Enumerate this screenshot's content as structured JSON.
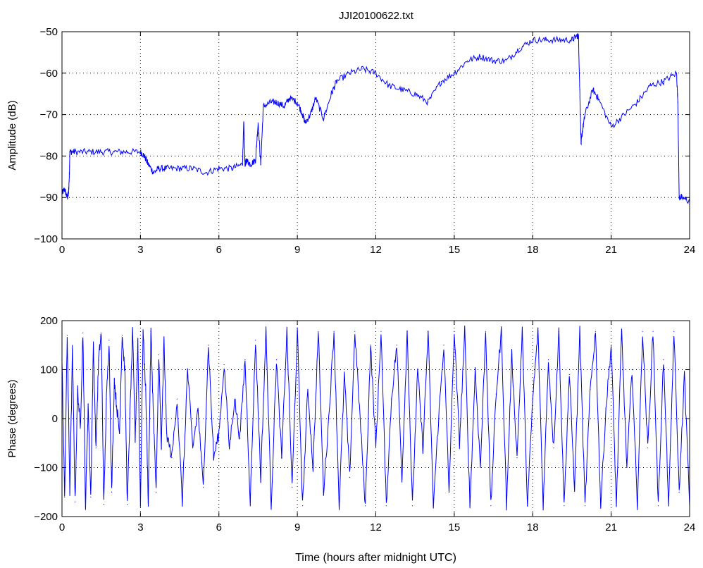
{
  "figure": {
    "title": "JJI20100622.txt"
  },
  "chart_data": [
    {
      "type": "line",
      "title": "JJI20100622.txt",
      "xlabel": "",
      "ylabel": "Amplitude (dB)",
      "xlim": [
        0,
        24
      ],
      "ylim": [
        -100,
        -50
      ],
      "xticks": [
        0,
        3,
        6,
        9,
        12,
        15,
        18,
        21,
        24
      ],
      "yticks": [
        -100,
        -90,
        -80,
        -70,
        -60,
        -50
      ],
      "grid": true,
      "color": "#0000ff",
      "series": [
        {
          "x": [
            0,
            0.1,
            0.2,
            0.25,
            0.28,
            0.3,
            0.5,
            1.0,
            1.5,
            2.0,
            2.5,
            3.0,
            3.15,
            3.3,
            3.5,
            3.7,
            4.0,
            4.5,
            5.0,
            5.5,
            6.0,
            6.5,
            6.9,
            6.95,
            7.0,
            7.05,
            7.2,
            7.4,
            7.5,
            7.6,
            7.7,
            8.0,
            8.2,
            8.5,
            8.7,
            9.0,
            9.2,
            9.3,
            9.5,
            9.7,
            10.0,
            10.3,
            10.5,
            11.0,
            11.5,
            12.0,
            12.5,
            13.0,
            13.5,
            14.0,
            14.5,
            15.0,
            15.5,
            16.0,
            16.5,
            17.0,
            17.5,
            18.0,
            18.5,
            19.0,
            19.5,
            19.7,
            19.75,
            19.8,
            19.85,
            19.9,
            20.0,
            20.3,
            20.5,
            21.0,
            21.5,
            22.0,
            22.5,
            23.0,
            23.5,
            23.55,
            23.6,
            23.7,
            24.0
          ],
          "y": [
            -89,
            -88,
            -90,
            -89,
            -85,
            -79,
            -79,
            -79,
            -79,
            -79,
            -79,
            -79,
            -80,
            -82,
            -84,
            -83,
            -83,
            -83,
            -83,
            -84,
            -83,
            -83,
            -82,
            -72,
            -82,
            -81,
            -82,
            -81,
            -72,
            -82,
            -68,
            -67,
            -67,
            -68,
            -66,
            -67,
            -70,
            -72,
            -70,
            -66,
            -71,
            -65,
            -62,
            -60,
            -59,
            -60,
            -63,
            -64,
            -65,
            -67,
            -62,
            -60,
            -57,
            -56,
            -57,
            -57,
            -54,
            -52,
            -52,
            -52,
            -52,
            -51,
            -51,
            -64,
            -77,
            -74,
            -70,
            -64,
            -66,
            -73,
            -70,
            -67,
            -63,
            -62,
            -60,
            -67,
            -90,
            -90,
            -91
          ]
        }
      ]
    },
    {
      "type": "line",
      "title": "",
      "xlabel": "Time (hours after midnight UTC)",
      "ylabel": "Phase (degrees)",
      "xlim": [
        0,
        24
      ],
      "ylim": [
        -200,
        200
      ],
      "xticks": [
        0,
        3,
        6,
        9,
        12,
        15,
        18,
        21,
        24
      ],
      "yticks": [
        -200,
        -100,
        0,
        100,
        200
      ],
      "grid": true,
      "color": "#0000ff",
      "series": [
        {
          "x": [
            0,
            0.1,
            0.2,
            0.3,
            0.4,
            0.5,
            0.6,
            0.7,
            0.8,
            0.9,
            1.0,
            1.1,
            1.2,
            1.3,
            1.4,
            1.5,
            1.6,
            1.7,
            1.8,
            1.9,
            2.0,
            2.1,
            2.2,
            2.3,
            2.4,
            2.5,
            2.6,
            2.7,
            2.8,
            2.9,
            3.0,
            3.1,
            3.2,
            3.3,
            3.4,
            3.5,
            3.6,
            3.7,
            3.8,
            3.9,
            4.0,
            4.2,
            4.4,
            4.6,
            4.8,
            5.0,
            5.2,
            5.4,
            5.6,
            5.8,
            6.0,
            6.2,
            6.4,
            6.6,
            6.8,
            7.0,
            7.2,
            7.4,
            7.6,
            7.8,
            8.0,
            8.2,
            8.4,
            8.6,
            8.8,
            9.0,
            9.2,
            9.4,
            9.6,
            9.8,
            10.0,
            10.2,
            10.4,
            10.6,
            10.8,
            11.0,
            11.2,
            11.4,
            11.6,
            11.8,
            12.0,
            12.2,
            12.4,
            12.6,
            12.8,
            13.0,
            13.2,
            13.4,
            13.6,
            13.8,
            14.0,
            14.2,
            14.4,
            14.6,
            14.8,
            15.0,
            15.2,
            15.4,
            15.6,
            15.8,
            16.0,
            16.2,
            16.4,
            16.6,
            16.8,
            17.0,
            17.2,
            17.4,
            17.6,
            17.8,
            18.0,
            18.2,
            18.4,
            18.6,
            18.8,
            19.0,
            19.2,
            19.4,
            19.6,
            19.8,
            20.0,
            20.2,
            20.4,
            20.6,
            20.8,
            21.0,
            21.2,
            21.4,
            21.6,
            21.8,
            22.0,
            22.2,
            22.4,
            22.6,
            22.8,
            23.0,
            23.2,
            23.4,
            23.6,
            23.8,
            24.0
          ],
          "y": [
            120,
            -160,
            170,
            -150,
            140,
            -170,
            60,
            -20,
            175,
            -180,
            30,
            -160,
            150,
            -60,
            120,
            175,
            -175,
            40,
            160,
            -150,
            80,
            20,
            -30,
            170,
            100,
            -175,
            10,
            175,
            -40,
            160,
            -178,
            178,
            60,
            -170,
            178,
            0,
            -150,
            130,
            -60,
            160,
            -30,
            -80,
            40,
            -170,
            100,
            -60,
            20,
            -140,
            150,
            -80,
            -30,
            110,
            -60,
            40,
            -40,
            120,
            -170,
            160,
            -120,
            178,
            -178,
            120,
            -80,
            178,
            -140,
            178,
            -178,
            60,
            -100,
            178,
            -150,
            0,
            178,
            -178,
            90,
            -120,
            178,
            0,
            -178,
            150,
            -60,
            178,
            -178,
            40,
            150,
            -120,
            178,
            -178,
            100,
            -60,
            178,
            -178,
            0,
            150,
            -150,
            178,
            -50,
            178,
            -178,
            100,
            -100,
            178,
            -178,
            50,
            178,
            -178,
            130,
            -80,
            178,
            -178,
            40,
            178,
            -178,
            120,
            -60,
            178,
            -178,
            90,
            -140,
            178,
            -178,
            60,
            178,
            -178,
            20,
            150,
            -178,
            178,
            -100,
            100,
            -178,
            178,
            -60,
            178,
            -178,
            120,
            -178,
            178,
            -150,
            90,
            -178
          ]
        }
      ]
    }
  ]
}
